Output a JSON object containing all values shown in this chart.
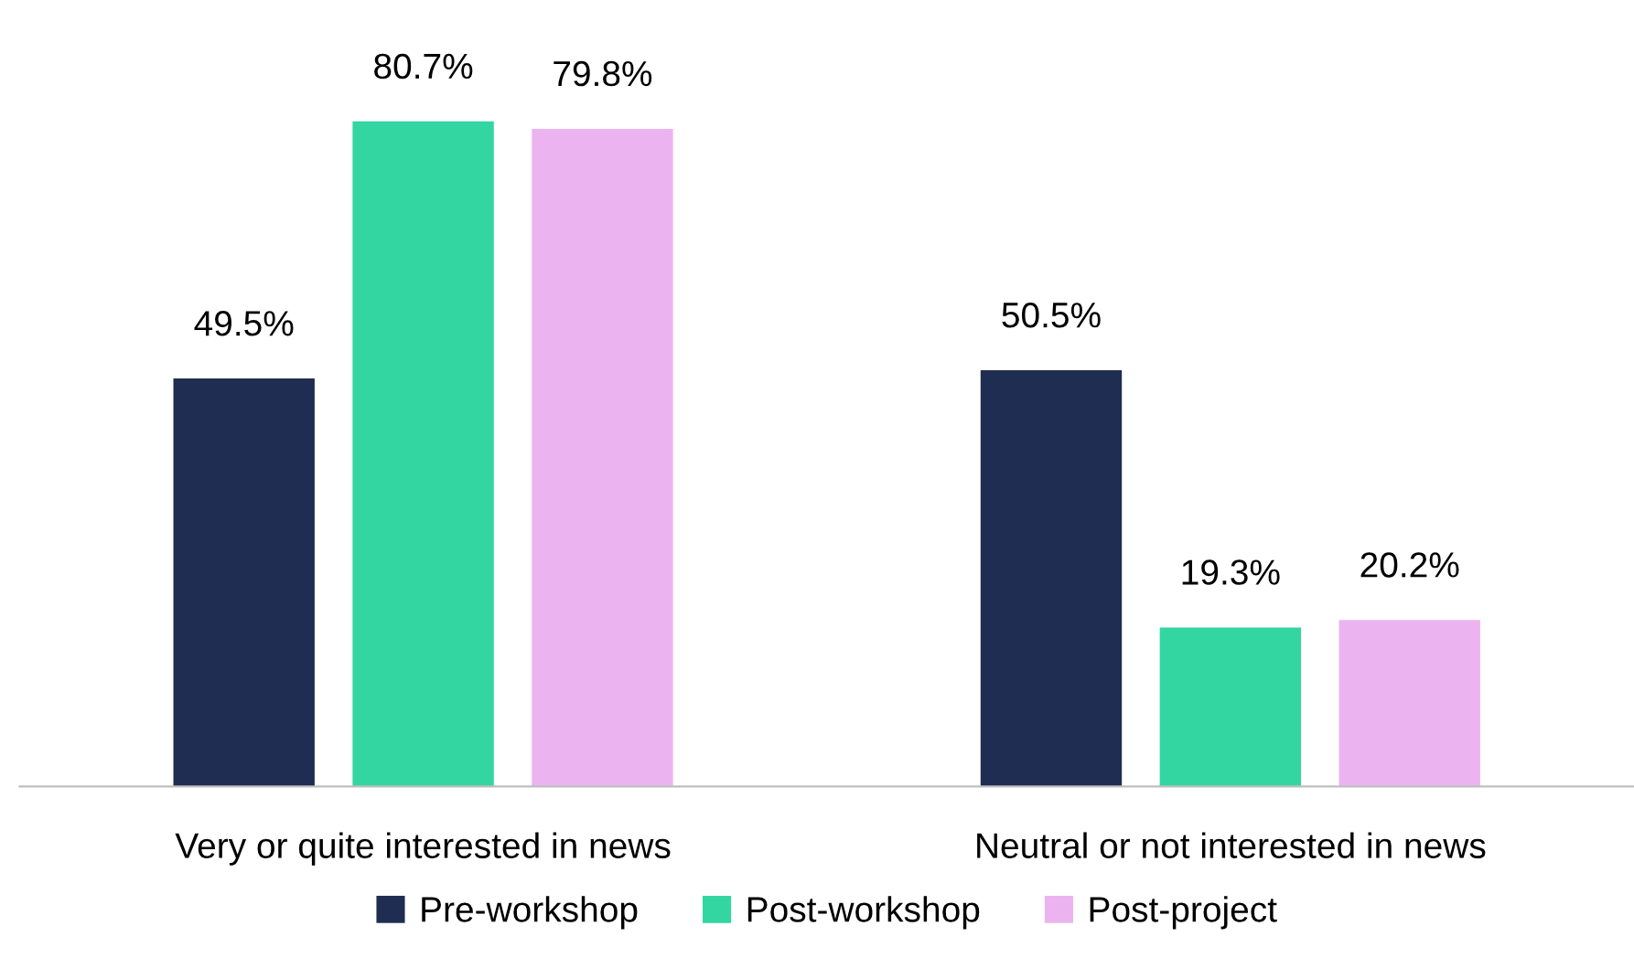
{
  "chart_data": {
    "type": "bar",
    "categories": [
      "Very or quite interested in news",
      "Neutral or not interested in news"
    ],
    "series": [
      {
        "name": "Pre-workshop",
        "color": "#1f2d52",
        "values": [
          49.5,
          50.5
        ],
        "value_labels": [
          "49.5%",
          "50.5%"
        ]
      },
      {
        "name": "Post-workshop",
        "color": "#33d6a0",
        "values": [
          80.7,
          19.3
        ],
        "value_labels": [
          "80.7%",
          "19.3%"
        ]
      },
      {
        "name": "Post-project",
        "color": "#ebb4f0",
        "values": [
          79.8,
          20.2
        ],
        "value_labels": [
          "79.8%",
          "20.2%"
        ]
      }
    ],
    "legend": "bottom",
    "grid": false
  }
}
